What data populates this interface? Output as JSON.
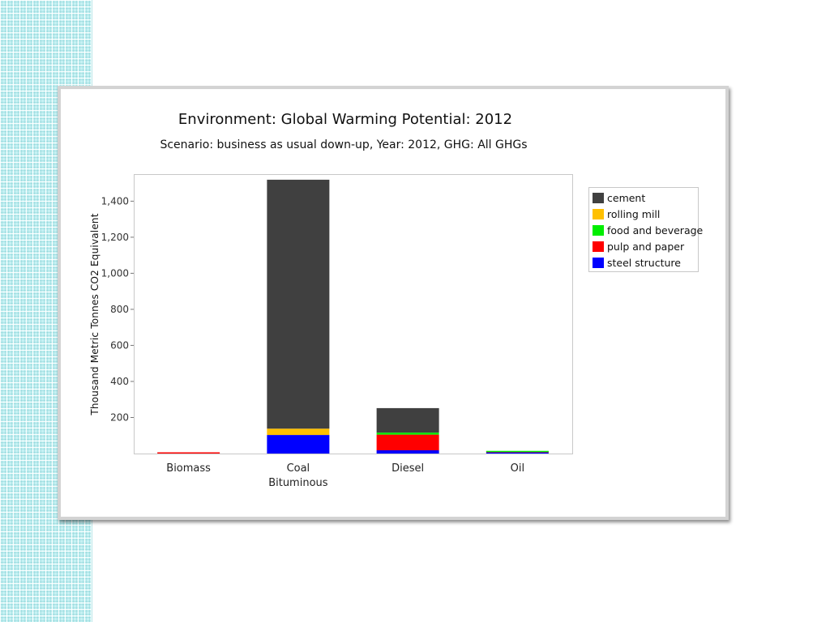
{
  "chart_data": {
    "type": "bar",
    "stacked": true,
    "title": "Environment: Global Warming Potential: 2012",
    "subtitle": "Scenario: business as usual down-up, Year: 2012, GHG: All GHGs",
    "xlabel": "",
    "ylabel": "Thousand Metric Tonnes CO2 Equivalent",
    "ylim": [
      0,
      1550
    ],
    "yticks": [
      200,
      400,
      600,
      800,
      1000,
      1200,
      1400
    ],
    "ytick_labels": [
      "200",
      "400",
      "600",
      "800",
      "1,000",
      "1,200",
      "1,400"
    ],
    "categories": [
      [
        "Biomass"
      ],
      [
        "Coal",
        "Bituminous"
      ],
      [
        "Diesel"
      ],
      [
        "Oil"
      ]
    ],
    "series": [
      {
        "name": "steel structure",
        "color": "#0000ff",
        "values": [
          0,
          103,
          18,
          6
        ]
      },
      {
        "name": "pulp and paper",
        "color": "#ff0000",
        "values": [
          3,
          0,
          87,
          2
        ]
      },
      {
        "name": "food and beverage",
        "color": "#00ee00",
        "values": [
          0,
          0,
          11,
          5
        ]
      },
      {
        "name": "rolling mill",
        "color": "#ffc000",
        "values": [
          0,
          35,
          0,
          0
        ]
      },
      {
        "name": "cement",
        "color": "#404040",
        "values": [
          0,
          1381,
          136,
          0
        ]
      }
    ],
    "legend_order": [
      "cement",
      "rolling mill",
      "food and beverage",
      "pulp and paper",
      "steel structure"
    ],
    "legend_position": "right",
    "grid": false
  }
}
